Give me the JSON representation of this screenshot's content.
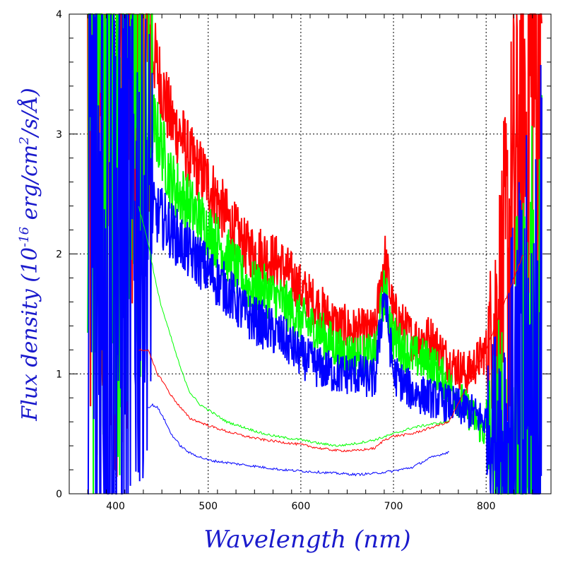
{
  "chart_data": {
    "type": "line",
    "title": "",
    "xlabel": "Wavelength (nm)",
    "ylabel": "Flux density (10",
    "ylabel_exp": "-16",
    "ylabel_units": " erg/cm",
    "ylabel_units_exp": "2",
    "ylabel_units_tail": "/s/Å)",
    "xlim": [
      350,
      870
    ],
    "ylim": [
      0,
      4
    ],
    "grid": "dotted, at labeled ticks",
    "legend": "none",
    "x_ticks": [
      "400",
      "500",
      "600",
      "700",
      "800"
    ],
    "x_tick_values": [
      400,
      500,
      600,
      700,
      800
    ],
    "y_ticks": [
      "0",
      "1",
      "2",
      "3",
      "4"
    ],
    "y_tick_values": [
      0,
      1,
      2,
      3,
      4
    ],
    "series": [
      {
        "color": "#ff0000",
        "style": "noisy-thick",
        "x": [
          370,
          390,
          410,
          420,
          430,
          440,
          450,
          460,
          470,
          480,
          490,
          500,
          520,
          540,
          560,
          580,
          600,
          620,
          640,
          660,
          680,
          690,
          700,
          720,
          740,
          760,
          780,
          800,
          820,
          840,
          860
        ],
        "values": [
          4.0,
          3.8,
          3.5,
          3.2,
          3.6,
          3.7,
          3.4,
          3.1,
          3.0,
          2.8,
          2.7,
          2.6,
          2.3,
          2.05,
          2.0,
          1.9,
          1.7,
          1.55,
          1.4,
          1.35,
          1.35,
          2.0,
          1.5,
          1.3,
          1.3,
          1.1,
          1.0,
          1.2,
          1.8,
          3.0,
          4.0
        ]
      },
      {
        "color": "#00ff00",
        "style": "noisy-thick",
        "x": [
          370,
          390,
          410,
          420,
          430,
          440,
          450,
          460,
          470,
          480,
          490,
          500,
          520,
          540,
          560,
          580,
          600,
          620,
          640,
          660,
          680,
          690,
          700,
          720,
          740,
          760,
          780,
          800,
          820,
          840,
          860
        ],
        "values": [
          4.0,
          3.8,
          3.4,
          3.0,
          3.0,
          3.1,
          2.9,
          2.6,
          2.5,
          2.4,
          2.3,
          2.2,
          2.0,
          1.75,
          1.7,
          1.6,
          1.45,
          1.35,
          1.2,
          1.15,
          1.15,
          1.7,
          1.3,
          1.15,
          1.1,
          0.9,
          0.7,
          0.5,
          0.4,
          0.3,
          0.2
        ]
      },
      {
        "color": "#0000ff",
        "style": "noisy-thick",
        "x": [
          370,
          390,
          410,
          420,
          430,
          440,
          450,
          460,
          470,
          480,
          490,
          500,
          520,
          540,
          560,
          580,
          600,
          620,
          640,
          660,
          680,
          690,
          700,
          720,
          740,
          760,
          780,
          800,
          820,
          840,
          860
        ],
        "values": [
          2.0,
          2.0,
          1.8,
          2.1,
          2.2,
          2.35,
          2.3,
          2.2,
          2.1,
          2.0,
          1.95,
          1.85,
          1.7,
          1.5,
          1.4,
          1.3,
          1.15,
          1.05,
          1.0,
          1.0,
          0.95,
          1.7,
          1.0,
          0.85,
          0.8,
          0.75,
          0.7,
          0.6,
          0.5,
          0.45,
          0.4
        ]
      },
      {
        "color": "#00ff00",
        "style": "thin",
        "x": [
          425,
          435,
          440,
          445,
          450,
          460,
          470,
          480,
          490,
          500,
          520,
          540,
          560,
          580,
          600,
          620,
          640,
          660,
          680,
          700,
          720,
          740,
          760
        ],
        "values": [
          2.4,
          2.1,
          1.9,
          1.7,
          1.55,
          1.3,
          1.05,
          0.85,
          0.75,
          0.7,
          0.6,
          0.55,
          0.5,
          0.47,
          0.45,
          0.42,
          0.4,
          0.42,
          0.45,
          0.5,
          0.55,
          0.58,
          0.6
        ]
      },
      {
        "color": "#ff0000",
        "style": "thin",
        "x": [
          425,
          435,
          440,
          445,
          450,
          460,
          470,
          480,
          490,
          500,
          520,
          540,
          560,
          580,
          600,
          620,
          640,
          660,
          680,
          690,
          700,
          720,
          740,
          760,
          780,
          800,
          820,
          840
        ],
        "values": [
          1.2,
          1.2,
          1.1,
          1.0,
          0.95,
          0.82,
          0.72,
          0.63,
          0.6,
          0.57,
          0.52,
          0.48,
          0.45,
          0.43,
          0.41,
          0.38,
          0.36,
          0.36,
          0.38,
          0.45,
          0.48,
          0.5,
          0.55,
          0.6,
          0.9,
          1.2,
          1.6,
          2.0
        ]
      },
      {
        "color": "#0000ff",
        "style": "thin",
        "x": [
          435,
          440,
          445,
          450,
          460,
          470,
          480,
          490,
          500,
          520,
          540,
          560,
          580,
          600,
          620,
          640,
          660,
          680,
          700,
          720,
          740,
          760
        ],
        "values": [
          0.72,
          0.74,
          0.72,
          0.66,
          0.5,
          0.4,
          0.34,
          0.31,
          0.28,
          0.26,
          0.24,
          0.22,
          0.2,
          0.19,
          0.18,
          0.17,
          0.16,
          0.17,
          0.19,
          0.22,
          0.3,
          0.35
        ]
      }
    ]
  }
}
